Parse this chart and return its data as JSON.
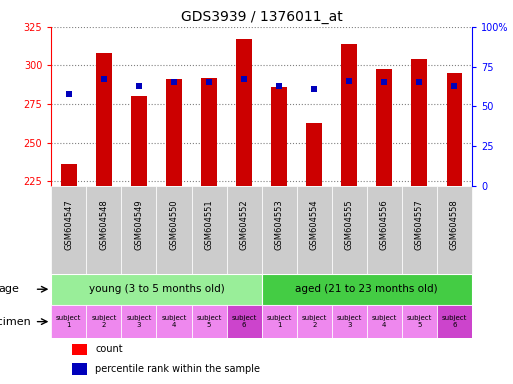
{
  "title": "GDS3939 / 1376011_at",
  "samples": [
    "GSM604547",
    "GSM604548",
    "GSM604549",
    "GSM604550",
    "GSM604551",
    "GSM604552",
    "GSM604553",
    "GSM604554",
    "GSM604555",
    "GSM604556",
    "GSM604557",
    "GSM604558"
  ],
  "bar_values": [
    236,
    308,
    280,
    291,
    292,
    317,
    286,
    263,
    314,
    298,
    304,
    295
  ],
  "bar_bottom": 222,
  "percentile_values": [
    58,
    67,
    63,
    65,
    65,
    67,
    63,
    61,
    66,
    65,
    65,
    63
  ],
  "ylim_left": [
    222,
    325
  ],
  "ylim_right": [
    0,
    100
  ],
  "yticks_left": [
    225,
    250,
    275,
    300,
    325
  ],
  "yticks_right": [
    0,
    25,
    50,
    75,
    100
  ],
  "bar_color": "#cc0000",
  "dot_color": "#0000bb",
  "age_groups": [
    {
      "label": "young (3 to 5 months old)",
      "start": 0,
      "end": 6,
      "color": "#99ee99"
    },
    {
      "label": "aged (21 to 23 months old)",
      "start": 6,
      "end": 12,
      "color": "#44cc44"
    }
  ],
  "specimen_colors_light": "#ee88ee",
  "specimen_colors_dark": "#cc44cc",
  "specimen_dark_indices": [
    5,
    11
  ],
  "spec_labels": [
    "subject\n1",
    "subject\n2",
    "subject\n3",
    "subject\n4",
    "subject\n5",
    "subject\n6",
    "subject\n1",
    "subject\n2",
    "subject\n3",
    "subject\n4",
    "subject\n5",
    "subject\n6"
  ],
  "xlabel_age": "age",
  "xlabel_specimen": "specimen",
  "legend_count": "count",
  "legend_percentile": "percentile rank within the sample",
  "title_fontsize": 10,
  "tick_fontsize": 7,
  "gsm_fontsize": 6,
  "label_fontsize": 8,
  "age_fontsize": 7.5,
  "spec_fontsize": 5
}
